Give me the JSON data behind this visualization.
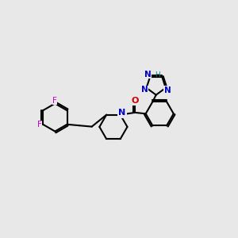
{
  "bg_color": "#e8e8e8",
  "bond_color": "#000000",
  "bond_width": 1.5,
  "dbo": 0.055,
  "figsize": [
    3.0,
    3.0
  ],
  "dpi": 100,
  "xlim": [
    -6.5,
    4.0
  ],
  "ylim": [
    -2.5,
    3.2
  ],
  "F_color": "#cc00cc",
  "N_color": "#0000cc",
  "O_color": "#cc0000",
  "H_color": "#008888",
  "triazole_N_color": "#0000cc"
}
